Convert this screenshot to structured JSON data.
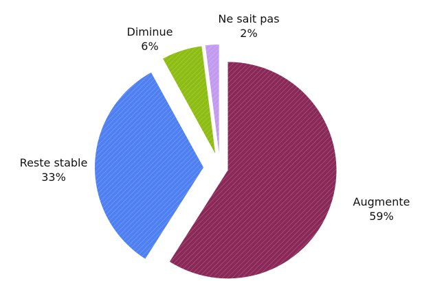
{
  "chart_data": {
    "type": "pie",
    "categories": [
      "Augmente",
      "Reste stable",
      "Diminue",
      "Ne sait pas"
    ],
    "values": [
      59,
      33,
      6,
      2
    ],
    "value_labels": [
      "59%",
      "33%",
      "6%",
      "2%"
    ],
    "colors": [
      "#8a2858",
      "#4f80f2",
      "#8dbd12",
      "#c29af0"
    ]
  }
}
